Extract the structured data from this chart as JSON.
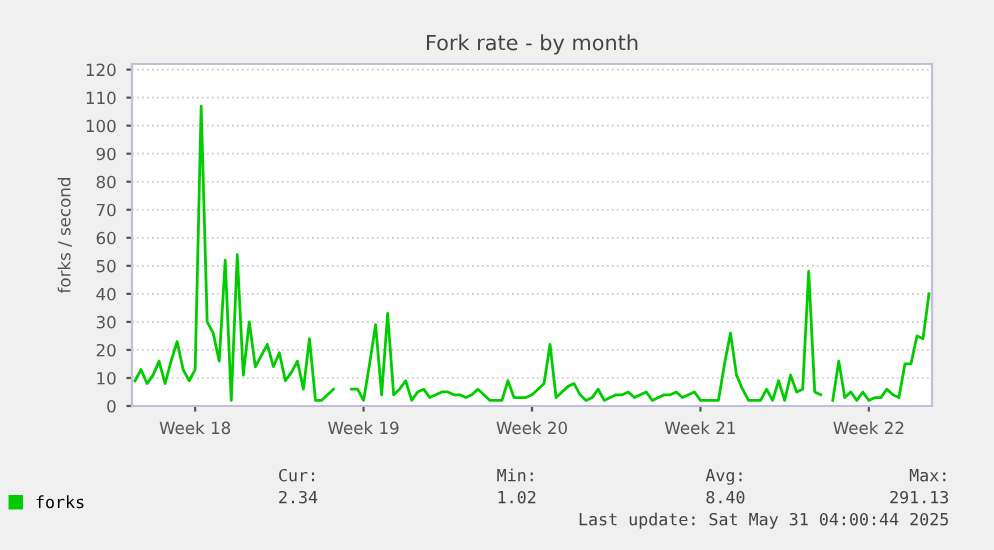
{
  "chart_data": {
    "type": "line",
    "title": "Fork rate - by month",
    "ylabel": "forks / second",
    "categories": [
      null,
      null,
      null,
      null,
      null,
      null,
      null,
      null,
      null,
      null,
      "Week 18",
      null,
      null,
      null,
      null,
      null,
      null,
      null,
      null,
      null,
      null,
      null,
      null,
      null,
      null,
      null,
      null,
      null,
      null,
      null,
      null,
      null,
      null,
      null,
      null,
      null,
      null,
      null,
      "Week 19",
      null,
      null,
      null,
      null,
      null,
      null,
      null,
      null,
      null,
      null,
      null,
      null,
      null,
      null,
      null,
      null,
      null,
      null,
      null,
      null,
      null,
      null,
      null,
      null,
      null,
      null,
      null,
      "Week 20",
      null,
      null,
      null,
      null,
      null,
      null,
      null,
      null,
      null,
      null,
      null,
      null,
      null,
      null,
      null,
      null,
      null,
      null,
      null,
      null,
      null,
      null,
      null,
      null,
      null,
      null,
      null,
      "Week 21",
      null,
      null,
      null,
      null,
      null,
      null,
      null,
      null,
      null,
      null,
      null,
      null,
      null,
      null,
      null,
      null,
      null,
      null,
      null,
      null,
      null,
      null,
      null,
      null,
      null,
      null,
      null,
      "Week 22",
      null,
      null,
      null,
      null,
      null,
      null,
      null,
      null,
      null,
      null
    ],
    "series": [
      {
        "name": "forks",
        "color": "#00cc00",
        "values": [
          9,
          13,
          8,
          11,
          16,
          8,
          16,
          23,
          13,
          9,
          13,
          107,
          30,
          26,
          16,
          52,
          2,
          54,
          11,
          30,
          14,
          18,
          22,
          14,
          19,
          9,
          12,
          16,
          6,
          24,
          2,
          2,
          4,
          6,
          null,
          null,
          6,
          6,
          2,
          15,
          29,
          4,
          33,
          4,
          6,
          9,
          2,
          5,
          6,
          3,
          4,
          5,
          5,
          4,
          4,
          3,
          4,
          6,
          4,
          2,
          2,
          2,
          9,
          3,
          3,
          3,
          4,
          6,
          8,
          22,
          3,
          5,
          7,
          8,
          4,
          2,
          3,
          6,
          2,
          3,
          4,
          4,
          5,
          3,
          4,
          5,
          2,
          3,
          4,
          4,
          5,
          3,
          4,
          5,
          2,
          2,
          2,
          2,
          15,
          26,
          11,
          6,
          2,
          2,
          2,
          6,
          2,
          9,
          2,
          11,
          5,
          6,
          48,
          5,
          4,
          null,
          2,
          16,
          3,
          5,
          2,
          5,
          2,
          3,
          3,
          6,
          4,
          3,
          15,
          15,
          25,
          24,
          40
        ]
      }
    ],
    "ylim": [
      0,
      122
    ],
    "yticks": [
      0,
      10,
      20,
      30,
      40,
      50,
      60,
      70,
      80,
      90,
      100,
      110,
      120
    ],
    "grid": "y",
    "legend": "bottom left",
    "annotations": [
      "Cur:",
      "2.34",
      "Min:",
      "1.02",
      "Avg:",
      "8.40",
      "Max:",
      "291.13",
      "Last update: Sat May 31 04:00:44 2025"
    ]
  }
}
